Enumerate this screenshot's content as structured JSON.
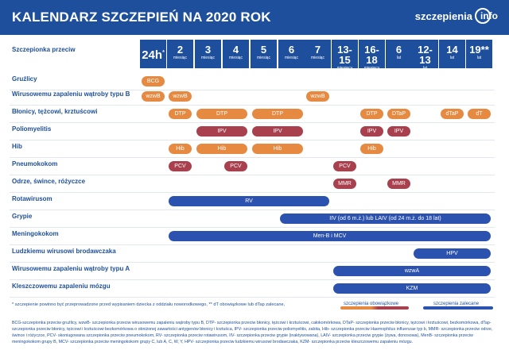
{
  "title": "KALENDARZ SZCZEPIEŃ NA 2020 ROK",
  "logo": {
    "text": "szczepienia",
    "suffix": "info"
  },
  "column_header_title": "Szczepionka przeciw",
  "columns": [
    {
      "num": "24h",
      "sup": "*",
      "unit": ""
    },
    {
      "num": "2",
      "unit": "miesiąc"
    },
    {
      "num": "3",
      "unit": "miesiąc"
    },
    {
      "num": "4",
      "unit": "miesiąc"
    },
    {
      "num": "5",
      "unit": "miesiąc"
    },
    {
      "num": "6",
      "unit": "miesiąc"
    },
    {
      "num": "7",
      "unit": "miesiąc"
    },
    {
      "num": "13-15",
      "unit": "miesięcy"
    },
    {
      "num": "16-18",
      "unit": "miesięcy"
    },
    {
      "num": "6",
      "unit": "lat"
    },
    {
      "num": "12-13",
      "unit": "lat"
    },
    {
      "num": "14",
      "unit": "lat"
    },
    {
      "num": "19**",
      "unit": "lat"
    }
  ],
  "rows": [
    {
      "label": "Gruźlicy",
      "bars": [
        {
          "text": "BCG",
          "type": "o",
          "from": 0,
          "to": 0
        }
      ]
    },
    {
      "label": "Wirusowemu zapaleniu wątroby typu B",
      "bars": [
        {
          "text": "wzwB",
          "type": "o",
          "from": 0,
          "to": 0
        },
        {
          "text": "wzwB",
          "type": "o",
          "from": 1,
          "to": 1
        },
        {
          "text": "wzwB",
          "type": "o",
          "from": 6,
          "to": 6
        }
      ]
    },
    {
      "label": "Błonicy, tężcowi, krztuścowi",
      "bars": [
        {
          "text": "DTP",
          "type": "o",
          "from": 1,
          "to": 1
        },
        {
          "text": "DTP",
          "type": "o",
          "from": 2,
          "to": 3
        },
        {
          "text": "DTP",
          "type": "o",
          "from": 4,
          "to": 5
        },
        {
          "text": "DTP",
          "type": "o",
          "from": 8,
          "to": 8
        },
        {
          "text": "DTaP",
          "type": "o",
          "from": 9,
          "to": 9
        },
        {
          "text": "dTaP",
          "type": "o",
          "from": 11,
          "to": 11
        },
        {
          "text": "dT",
          "type": "o",
          "from": 12,
          "to": 12
        }
      ]
    },
    {
      "label": "Poliomyelitis",
      "bars": [
        {
          "text": "IPV",
          "type": "p",
          "from": 2,
          "to": 3
        },
        {
          "text": "IPV",
          "type": "p",
          "from": 4,
          "to": 5
        },
        {
          "text": "IPV",
          "type": "p",
          "from": 8,
          "to": 8
        },
        {
          "text": "IPV",
          "type": "p",
          "from": 9,
          "to": 9
        }
      ]
    },
    {
      "label": "Hib",
      "bars": [
        {
          "text": "Hib",
          "type": "o",
          "from": 1,
          "to": 1
        },
        {
          "text": "Hib",
          "type": "o",
          "from": 2,
          "to": 3
        },
        {
          "text": "Hib",
          "type": "o",
          "from": 4,
          "to": 5
        },
        {
          "text": "Hib",
          "type": "o",
          "from": 8,
          "to": 8
        }
      ]
    },
    {
      "label": "Pneumokokom",
      "bars": [
        {
          "text": "PCV",
          "type": "p",
          "from": 1,
          "to": 1
        },
        {
          "text": "PCV",
          "type": "p",
          "from": 3,
          "to": 3
        },
        {
          "text": "PCV",
          "type": "p",
          "from": 7,
          "to": 7
        }
      ]
    },
    {
      "label": "Odrze, śwince, różyczce",
      "bars": [
        {
          "text": "MMR",
          "type": "p",
          "from": 7,
          "to": 7
        },
        {
          "text": "MMR",
          "type": "p",
          "from": 9,
          "to": 9
        }
      ]
    },
    {
      "label": "Rotawirusom",
      "bars": [
        {
          "text": "RV",
          "type": "b",
          "from": 1,
          "to": 6
        }
      ]
    },
    {
      "label": "Grypie",
      "bars": [
        {
          "text": "IIV (od 6 m.ż.) lub LAIV (od 24 m.ż. do 18 lat)",
          "type": "b",
          "from": 5,
          "to": 12
        }
      ]
    },
    {
      "label": "Meningokokom",
      "bars": [
        {
          "text": "Men-B i MCV",
          "type": "b",
          "from": 1,
          "to": 12
        }
      ]
    },
    {
      "label": "Ludzkiemu wirusowi brodawczaka",
      "bars": [
        {
          "text": "HPV",
          "type": "b",
          "from": 10,
          "to": 12
        }
      ]
    },
    {
      "label": "Wirusowemu zapaleniu wątroby typu A",
      "bars": [
        {
          "text": "wzwA",
          "type": "b",
          "from": 7,
          "to": 12
        }
      ]
    },
    {
      "label": "Kleszczowemu zapaleniu mózgu",
      "bars": [
        {
          "text": "KZM",
          "type": "b",
          "from": 7,
          "to": 12
        }
      ]
    }
  ],
  "legend": {
    "mandatory": "szczepienia obowiązkowe",
    "recommended": "szczepienia zalecane"
  },
  "note": "* szczepienie powinno być przeprowadzone przed wypisaniem dziecka z oddziału noworodkowego, ** dT obowiązkowe lub dTap zalecane,",
  "footnote": "BCG-szczepionka przeciw gruźlicy, wzwB- szczepionka przeciw wirusowemu zapaleniu wątroby typu B, DTP- szczepionka przeciw błonicy, tężcowi i krztuścowi, całokomórkowa, DTaP- szczepionka przeciw błonicy, tężcowi i krztuścowi, bezkomórkowa, dTap- szczepionka przeciw błonicy, tężcowi i krztuścowi bezkomórkowa o obniżonej zawartości antygenów błonicy i krztuśca, IPV- szczepionka przeciw poliomyelitis, zabita, Hib- szczepionka przeciw Haemophilus influenzae typ b, MMR- szczepionka przeciw odrze, śwince i różyczce, PCV- skoniugowana szczepionka przeciw pneumokokom, RV- szczepionka przeciw rotawirusom, IIV- szczepionka przeciw grypie (inaktywowana), LAIV- szczepionka przeciw grypie (żywa, donosowa), MenB- szczepionka przeciw meningokokom grupy B, MCV- szczepionka przeciw meningokokom grupy C, lub A, C, W, Y, HPV- szczepionka przeciw ludzkiemu wirusowi brodawczaka, KZM- szczepionka przeciw kleszczowemu zapaleniu mózgu.",
  "colors": {
    "header": "#1d4f9c",
    "mandatory": "#e68a42",
    "mandatory2": "#a8404e",
    "recommended": "#2b52ae"
  }
}
